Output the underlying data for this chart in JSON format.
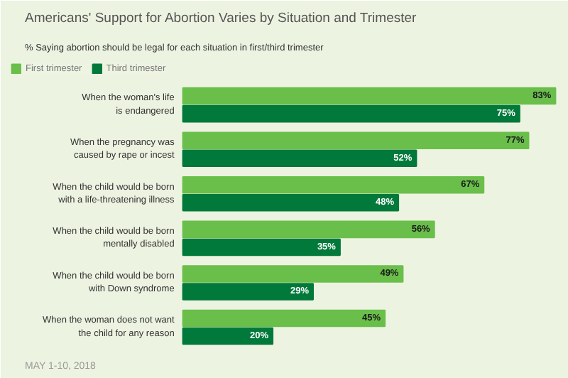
{
  "chart_data": {
    "type": "bar",
    "orientation": "horizontal",
    "title": "Americans' Support for Abortion Varies by Situation and Trimester",
    "subtitle": "% Saying abortion should be legal for each situation in first/third trimester",
    "categories": [
      "When the woman's life\nis endangered",
      "When the pregnancy was\ncaused by rape or incest",
      "When the child would be born\nwith a life-threatening illness",
      "When the child would be born\nmentally disabled",
      "When the child would be born\nwith Down syndrome",
      "When the woman does not want\nthe child for any reason"
    ],
    "series": [
      {
        "name": "First trimester",
        "color": "#6abf4b",
        "values": [
          83,
          77,
          67,
          56,
          49,
          45
        ],
        "value_labels": [
          "83%",
          "77%",
          "67%",
          "56%",
          "49%",
          "45%"
        ]
      },
      {
        "name": "Third trimester",
        "color": "#00793a",
        "values": [
          75,
          52,
          48,
          35,
          29,
          20
        ],
        "value_labels": [
          "75%",
          "52%",
          "48%",
          "35%",
          "29%",
          "20%"
        ]
      }
    ],
    "legend": "top left",
    "grid": false,
    "annotations": [
      "MAY 1-10, 2018"
    ]
  }
}
